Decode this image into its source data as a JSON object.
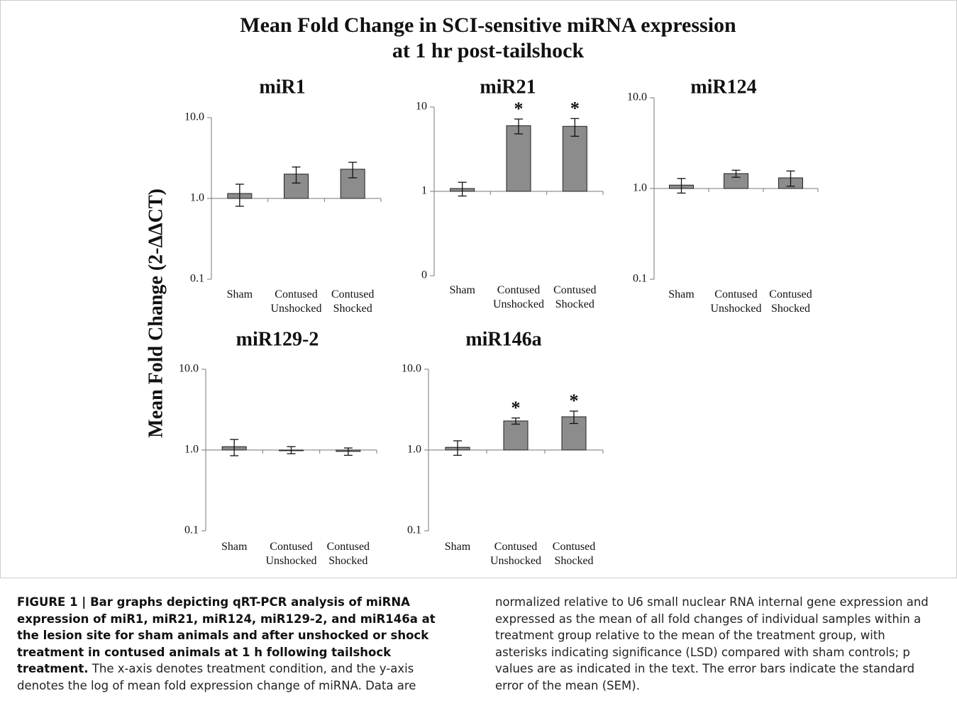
{
  "title": [
    "Mean Fold Change in SCI-sensitive miRNA expression",
    "at 1 hr post-tailshock"
  ],
  "y_label": "Mean Fold Change (2-ΔΔCT)",
  "chart_data": [
    {
      "type": "bar",
      "title": "miR1",
      "log": true,
      "color": "#8c8c8c",
      "categories": [
        [
          "Sham"
        ],
        [
          "Contused",
          "Unshocked"
        ],
        [
          "Contused",
          "Shocked"
        ]
      ],
      "values": [
        1.15,
        2.0,
        2.3
      ],
      "errors": [
        0.35,
        0.45,
        0.5
      ],
      "annotations": [
        null,
        null,
        null
      ],
      "ylim": [
        0.1,
        10
      ],
      "yticks": [
        {
          "value": 0.1,
          "label": "0.1"
        },
        {
          "value": 1,
          "label": "1.0"
        },
        {
          "value": 10,
          "label": "10.0"
        }
      ]
    },
    {
      "type": "bar",
      "title": "miR21",
      "log": true,
      "color": "#8c8c8c",
      "categories": [
        [
          "Sham"
        ],
        [
          "Contused",
          "Unshocked"
        ],
        [
          "Contused",
          "Shocked"
        ]
      ],
      "values": [
        1.08,
        6.0,
        5.9
      ],
      "errors": [
        0.2,
        1.2,
        1.4
      ],
      "annotations": [
        null,
        "*",
        "*"
      ],
      "ylim": [
        0.1,
        10
      ],
      "yticks": [
        {
          "value": 0.1,
          "label": "0"
        },
        1,
        10
      ]
    },
    {
      "type": "bar",
      "title": "miR124",
      "log": true,
      "color": "#8c8c8c",
      "categories": [
        [
          "Sham"
        ],
        [
          "Contused",
          "Unshocked"
        ],
        [
          "Contused",
          "Shocked"
        ]
      ],
      "values": [
        1.09,
        1.46,
        1.31
      ],
      "errors": [
        0.2,
        0.13,
        0.25
      ],
      "annotations": [
        null,
        null,
        null
      ],
      "ylim": [
        0.1,
        10
      ],
      "yticks": [
        {
          "value": 0.1,
          "label": "0.1"
        },
        {
          "value": 1,
          "label": "1.0"
        },
        {
          "value": 10,
          "label": "10.0"
        }
      ]
    },
    {
      "type": "bar",
      "title": "miR129-2",
      "log": true,
      "color": "#8c8c8c",
      "categories": [
        [
          "Sham"
        ],
        [
          "Contused",
          "Unshocked"
        ],
        [
          "Contused",
          "Shocked"
        ]
      ],
      "values": [
        1.1,
        1.0,
        0.96
      ],
      "errors": [
        0.25,
        0.1,
        0.1
      ],
      "annotations": [
        null,
        null,
        null
      ],
      "ylim": [
        0.1,
        10
      ],
      "yticks": [
        {
          "value": 0.1,
          "label": "0.1"
        },
        {
          "value": 1,
          "label": "1.0"
        },
        {
          "value": 10,
          "label": "10.0"
        }
      ]
    },
    {
      "type": "bar",
      "title": "miR146a",
      "log": true,
      "color": "#8c8c8c",
      "categories": [
        [
          "Sham"
        ],
        [
          "Contused",
          "Unshocked"
        ],
        [
          "Contused",
          "Shocked"
        ]
      ],
      "values": [
        1.08,
        2.29,
        2.58
      ],
      "errors": [
        0.22,
        0.2,
        0.45
      ],
      "annotations": [
        null,
        "*",
        "*"
      ],
      "ylim": [
        0.1,
        10
      ],
      "yticks": [
        {
          "value": 0.1,
          "label": "0.1"
        },
        {
          "value": 1,
          "label": "1.0"
        },
        {
          "value": 10,
          "label": "10.0"
        }
      ]
    }
  ],
  "caption": {
    "bold": "FIGURE 1 | Bar graphs depicting qRT-PCR analysis of miRNA expression of miR1, miR21, miR124, miR129-2, and miR146a at the lesion site for sham animals and after unshocked or shock treatment in contused animals at 1 h following tailshock treatment.",
    "text": "The x-axis denotes treatment condition, and the y-axis denotes the log of mean fold expression change of miRNA. Data are normalized relative to U6 small nuclear RNA internal gene expression and expressed as the mean of all fold changes of individual samples within a treatment group relative to the mean of the treatment group, with asterisks indicating significance (LSD) compared with sham controls; p values are as indicated in the text. The error bars indicate the standard error of the mean (SEM)."
  }
}
